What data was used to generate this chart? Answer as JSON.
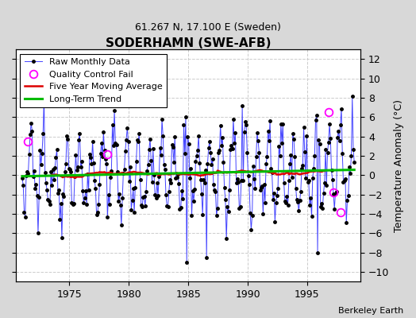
{
  "title": "SODERHAMN (SWE-AFB)",
  "subtitle": "61.267 N, 17.100 E (Sweden)",
  "ylabel": "Temperature Anomaly (°C)",
  "credit": "Berkeley Earth",
  "ylim": [
    -11,
    13
  ],
  "yticks": [
    -10,
    -8,
    -6,
    -4,
    -2,
    0,
    2,
    4,
    6,
    8,
    10,
    12
  ],
  "xlim": [
    1970.5,
    1999.5
  ],
  "xticks": [
    1975,
    1980,
    1985,
    1990,
    1995
  ],
  "fig_bg_color": "#d8d8d8",
  "plot_bg_color": "#ffffff",
  "grid_color": "#cccccc",
  "raw_line_color": "#4444ff",
  "raw_marker_color": "#000000",
  "moving_avg_color": "#dd0000",
  "trend_color": "#00bb00",
  "qc_color": "#ff00ff",
  "seed": 12345
}
